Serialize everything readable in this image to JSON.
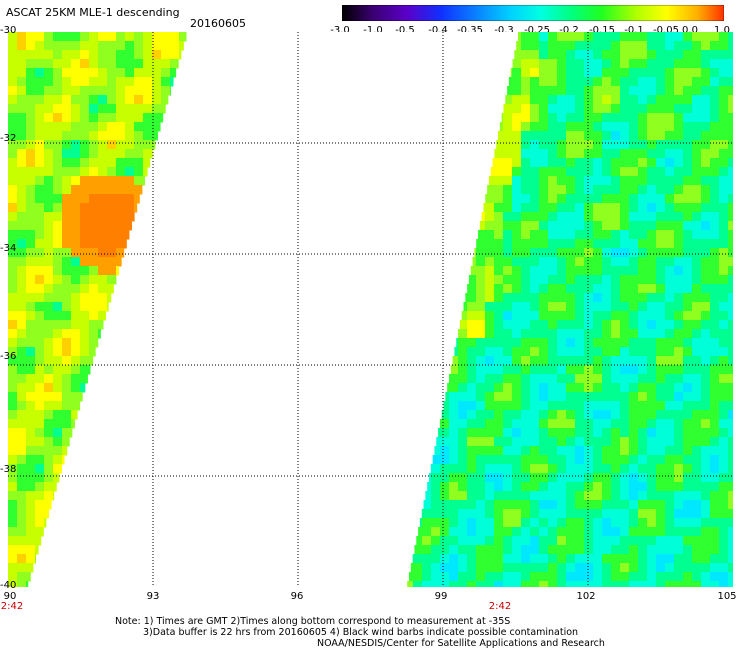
{
  "header": {
    "title": "ASCAT 25KM MLE-1 descending",
    "date": "20160605"
  },
  "colorbar": {
    "labels": [
      "-3.0",
      "-1.0",
      "-0.5",
      "-0.4",
      "-0.35",
      "-0.3",
      "-0.25",
      "-0.2",
      "-0.15",
      "-0.1",
      "-0.05",
      "0.0",
      "1.0"
    ],
    "colors": [
      "#000000",
      "#3a0070",
      "#5a00c8",
      "#1030ff",
      "#0a80ff",
      "#00d0ff",
      "#00ffe0",
      "#00ff80",
      "#20ff20",
      "#b0ff00",
      "#ffff00",
      "#ffb000",
      "#ff3000"
    ]
  },
  "map": {
    "lat_labels": [
      "-30",
      "-32",
      "-34",
      "-36",
      "-38",
      "-40"
    ],
    "lon_labels": [
      "90",
      "93",
      "96",
      "99",
      "102",
      "105"
    ],
    "time_labels": [
      "2:42",
      "2:42"
    ],
    "lat_range": [
      -40,
      -30
    ],
    "lon_range": [
      90,
      105
    ]
  },
  "notes": {
    "line1": "Note: 1) Times are GMT 2)Times along bottom correspond to measurement at -35S",
    "line2": "3)Data buffer is 22 hrs from 20160605 4) Black wind barbs indicate possible contamination",
    "line3": "NOAA/NESDIS/Center for Satellite Applications and Research"
  }
}
